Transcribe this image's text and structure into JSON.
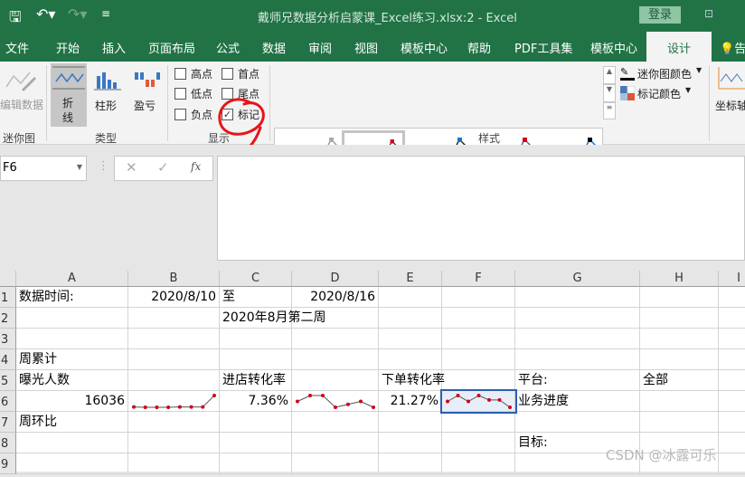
{
  "titlebar": {
    "title": "戴师兄数据分析启蒙课_Excel练习.xlsx:2  -  Excel",
    "login": "登录"
  },
  "tabs": [
    "文件",
    "开始",
    "插入",
    "页面布局",
    "公式",
    "数据",
    "审阅",
    "视图",
    "模板中心",
    "帮助",
    "PDF工具集",
    "模板中心",
    "设计",
    "告"
  ],
  "active_tab": "设计",
  "ribbon": {
    "sparkline_group": {
      "edit": "编辑数据",
      "label": "迷你图"
    },
    "type_group": {
      "line": "折线",
      "column": "柱形",
      "winloss": "盈亏",
      "label": "类型"
    },
    "show_group": {
      "label": "显示",
      "checks": [
        {
          "label": "高点",
          "checked": false
        },
        {
          "label": "首点",
          "checked": false
        },
        {
          "label": "低点",
          "checked": false
        },
        {
          "label": "尾点",
          "checked": false
        },
        {
          "label": "负点",
          "checked": false
        },
        {
          "label": "标记",
          "checked": true
        }
      ]
    },
    "style_group": {
      "label": "样式",
      "sparkline_color": "迷你图颜色",
      "marker_color": "标记颜色"
    },
    "axis": "坐标轴"
  },
  "namebox": "F6",
  "formula_icons": [
    "cancel-icon",
    "enter-icon",
    "fx-icon"
  ],
  "fx": "fx",
  "columns": [
    "A",
    "B",
    "C",
    "D",
    "E",
    "F",
    "G",
    "H",
    "I"
  ],
  "rows": [
    "1",
    "2",
    "3",
    "4",
    "5",
    "6",
    "7",
    "8",
    "9"
  ],
  "cells": {
    "A1": "数据时间:",
    "B1": "2020/8/10",
    "C1": "至",
    "D1": "2020/8/16",
    "C2": "2020年8月第二周",
    "A4": "周累计",
    "A5": "曝光人数",
    "C5": "进店转化率",
    "E5": "下单转化率",
    "G5": "平台:",
    "H5": "全部",
    "A6": "16036",
    "C6": "7.36%",
    "E6": "21.27%",
    "G6": "业务进度",
    "A7": "周环比",
    "G8": "目标:"
  },
  "sparklines": {
    "B6": [
      1,
      0.9,
      0.9,
      0.9,
      1,
      1,
      1,
      5
    ],
    "D6": [
      3,
      5,
      5,
      1,
      2,
      3,
      1
    ],
    "F6": [
      3,
      5,
      3,
      5,
      3.5,
      3.5,
      1
    ]
  },
  "colors": {
    "brand": "#217346",
    "marker": "#d0021b",
    "sparkline_line": "#555555",
    "selection": "#2b5fb4"
  },
  "watermark": "CSDN @冰露可乐"
}
